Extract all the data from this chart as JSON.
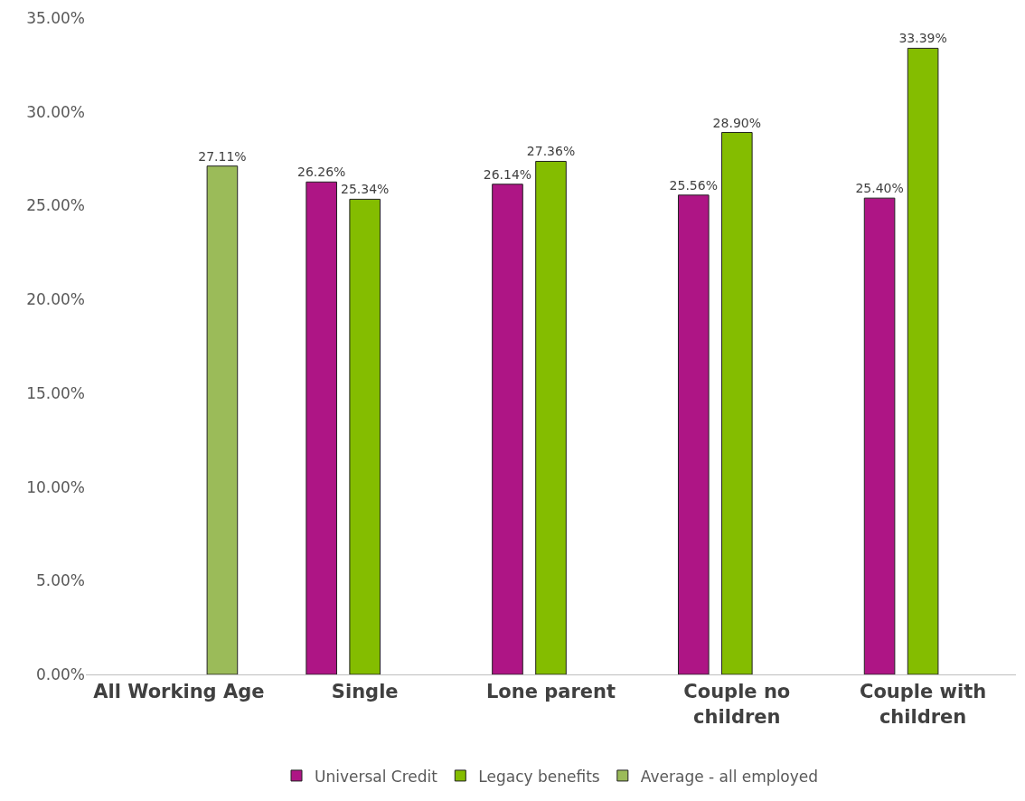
{
  "chart_data": {
    "type": "bar",
    "categories": [
      "All Working Age",
      "Single",
      "Lone parent",
      "Couple no children",
      "Couple with children"
    ],
    "series": [
      {
        "name": "Universal Credit",
        "color": "#ae1585",
        "values": [
          null,
          26.26,
          26.14,
          25.56,
          25.4
        ],
        "value_labels": [
          null,
          "26.26%",
          "26.14%",
          "25.56%",
          "25.40%"
        ]
      },
      {
        "name": "Legacy benefits",
        "color": "#84bd00",
        "values": [
          null,
          25.34,
          27.36,
          28.9,
          33.39
        ],
        "value_labels": [
          null,
          "25.34%",
          "27.36%",
          "28.90%",
          "33.39%"
        ]
      },
      {
        "name": "Average - all employed",
        "color": "#9bbb59",
        "values": [
          27.11,
          null,
          null,
          null,
          null
        ],
        "value_labels": [
          "27.11%",
          null,
          null,
          null,
          null
        ]
      }
    ],
    "ylim": [
      0,
      35
    ],
    "yticks": [
      {
        "value": 0,
        "label": "0.00%"
      },
      {
        "value": 5,
        "label": "5.00%"
      },
      {
        "value": 10,
        "label": "10.00%"
      },
      {
        "value": 15,
        "label": "15.00%"
      },
      {
        "value": 20,
        "label": "20.00%"
      },
      {
        "value": 25,
        "label": "25.00%"
      },
      {
        "value": 30,
        "label": "30.00%"
      },
      {
        "value": 35,
        "label": "35.00%"
      }
    ],
    "legend": "bottom"
  }
}
